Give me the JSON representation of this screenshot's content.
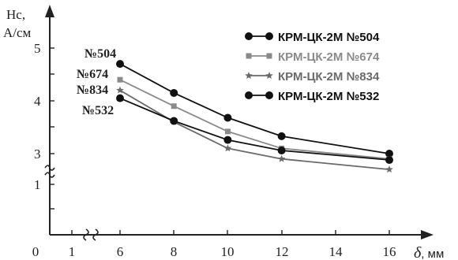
{
  "chart_data": {
    "type": "line",
    "ylabel": "Hc,",
    "yunit": "А/см",
    "xlabel_symbol": "δ",
    "xlabel_unit": ", мм",
    "x_ticks": [
      "0",
      "1",
      "6",
      "8",
      "10",
      "12",
      "14",
      "16"
    ],
    "y_ticks": [
      "1",
      "3",
      "4",
      "5"
    ],
    "x": [
      6,
      8,
      10,
      12,
      16
    ],
    "grid": false,
    "legend_position": "top-right",
    "series": [
      {
        "name": "КРМ-ЦК-2М №504",
        "short": "№504",
        "color": "#111111",
        "marker": "circle",
        "values": [
          4.7,
          4.15,
          3.68,
          3.33,
          3.0
        ]
      },
      {
        "name": "КРМ-ЦК-2М №674",
        "short": "№674",
        "color": "#8a8a8a",
        "marker": "square",
        "values": [
          4.4,
          3.9,
          3.42,
          3.1,
          2.9
        ]
      },
      {
        "name": "КРМ-ЦК-2М №834",
        "short": "№834",
        "color": "#6a6a6a",
        "marker": "star",
        "values": [
          4.2,
          3.6,
          3.1,
          2.9,
          2.7
        ]
      },
      {
        "name": "КРМ-ЦК-2М №532",
        "short": "№532",
        "color": "#111111",
        "marker": "circle",
        "values": [
          4.05,
          3.62,
          3.26,
          3.06,
          2.88
        ]
      }
    ]
  }
}
